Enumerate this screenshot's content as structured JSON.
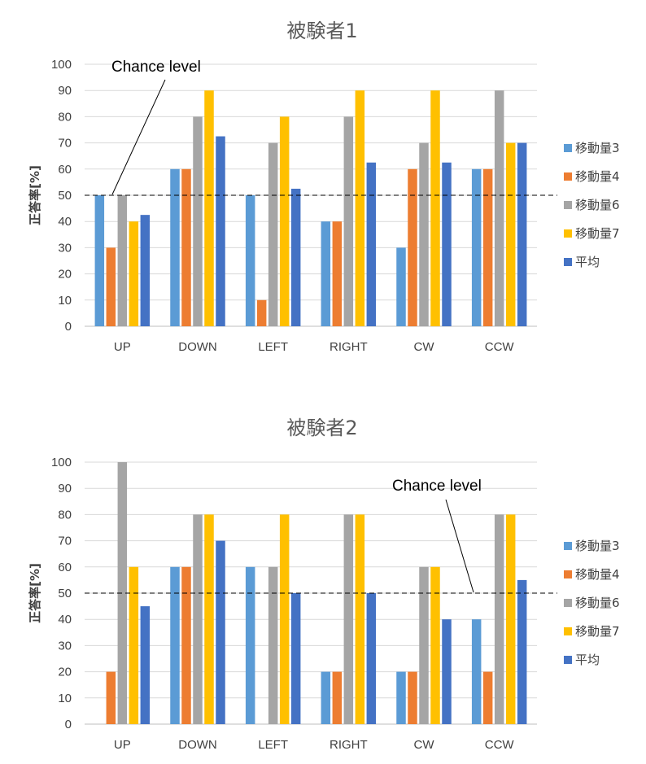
{
  "chart_data": [
    {
      "type": "bar",
      "title": "被験者1",
      "xlabel": "",
      "ylabel": "正答率[%]",
      "ylim": [
        0,
        100
      ],
      "ytick_step": 10,
      "grid": true,
      "legend_position": "right",
      "categories": [
        "UP",
        "DOWN",
        "LEFT",
        "RIGHT",
        "CW",
        "CCW"
      ],
      "series": [
        {
          "name": "移動量3",
          "color": "#5B9BD5",
          "values": [
            50,
            60,
            50,
            40,
            30,
            60
          ]
        },
        {
          "name": "移動量4",
          "color": "#ED7D31",
          "values": [
            30,
            60,
            10,
            40,
            60,
            60
          ]
        },
        {
          "name": "移動量6",
          "color": "#A5A5A5",
          "values": [
            50,
            80,
            70,
            80,
            70,
            90
          ]
        },
        {
          "name": "移動量7",
          "color": "#FFC000",
          "values": [
            40,
            90,
            80,
            90,
            90,
            70
          ]
        },
        {
          "name": "平均",
          "color": "#4472C4",
          "values": [
            42.5,
            72.5,
            52.5,
            62.5,
            62.5,
            70
          ]
        }
      ],
      "reference_line": {
        "value": 50,
        "style": "dashed"
      },
      "annotation": {
        "text": "Chance level",
        "points_to_category": "UP",
        "position": "upper-left"
      }
    },
    {
      "type": "bar",
      "title": "被験者2",
      "xlabel": "",
      "ylabel": "正答率[%]",
      "ylim": [
        0,
        100
      ],
      "ytick_step": 10,
      "grid": true,
      "legend_position": "right",
      "categories": [
        "UP",
        "DOWN",
        "LEFT",
        "RIGHT",
        "CW",
        "CCW"
      ],
      "series": [
        {
          "name": "移動量3",
          "color": "#5B9BD5",
          "values": [
            0,
            60,
            60,
            20,
            20,
            40
          ]
        },
        {
          "name": "移動量4",
          "color": "#ED7D31",
          "values": [
            20,
            60,
            0,
            20,
            20,
            20
          ]
        },
        {
          "name": "移動量6",
          "color": "#A5A5A5",
          "values": [
            100,
            80,
            60,
            80,
            60,
            80
          ]
        },
        {
          "name": "移動量7",
          "color": "#FFC000",
          "values": [
            60,
            80,
            80,
            80,
            60,
            80
          ]
        },
        {
          "name": "平均",
          "color": "#4472C4",
          "values": [
            45,
            70,
            50,
            50,
            40,
            55
          ]
        }
      ],
      "reference_line": {
        "value": 50,
        "style": "dashed"
      },
      "annotation": {
        "text": "Chance level",
        "points_to_category": "CW",
        "position": "upper-right"
      }
    }
  ]
}
